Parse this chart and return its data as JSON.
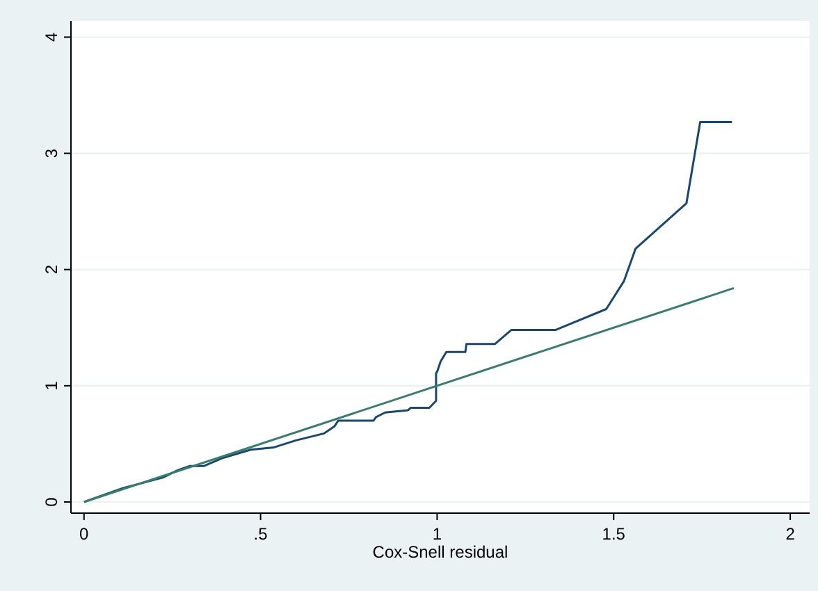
{
  "chart_data": {
    "type": "line",
    "xlabel": "Cox-Snell residual",
    "xlim": [
      -0.037,
      2.055
    ],
    "ylim": [
      -0.096,
      4.14
    ],
    "xticks": [
      0,
      {
        "value": 0.5,
        "label": ".5"
      },
      1,
      1.5,
      2
    ],
    "yticks": [
      0,
      1,
      2,
      3,
      4
    ],
    "grid": "y",
    "series": [
      {
        "color": "#1a476f",
        "x": [
          0,
          0.111,
          0.223,
          0.263,
          0.3,
          0.34,
          0.394,
          0.472,
          0.538,
          0.6,
          0.68,
          0.709,
          0.72,
          0.82,
          0.827,
          0.853,
          0.918,
          0.925,
          0.978,
          0.997,
          0.997,
          1.0,
          1.01,
          1.026,
          1.08,
          1.083,
          1.164,
          1.21,
          1.335,
          1.479,
          1.529,
          1.562,
          1.706,
          1.745,
          1.835
        ],
        "values": [
          0,
          0.12,
          0.21,
          0.27,
          0.31,
          0.31,
          0.38,
          0.45,
          0.47,
          0.53,
          0.59,
          0.65,
          0.7,
          0.7,
          0.73,
          0.77,
          0.79,
          0.81,
          0.81,
          0.87,
          1.11,
          1.12,
          1.21,
          1.29,
          1.29,
          1.36,
          1.36,
          1.48,
          1.48,
          1.66,
          1.9,
          2.18,
          2.57,
          3.27,
          3.27
        ]
      },
      {
        "color": "#3a7d6e",
        "x": [
          0,
          1.84
        ],
        "values": [
          0,
          1.84
        ]
      }
    ]
  }
}
